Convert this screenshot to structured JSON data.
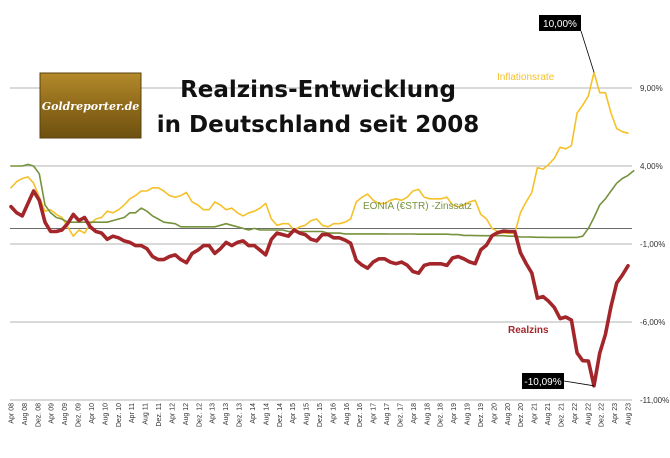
{
  "chart_data": {
    "type": "line",
    "title_lines": [
      "Realzins-Entwicklung",
      "in Deutschland seit 2008"
    ],
    "logo_text": "Goldreporter.de",
    "y_range": [
      -11,
      14
    ],
    "y_ticks": [
      {
        "value": 9,
        "label": "9,00%"
      },
      {
        "value": 4,
        "label": "4,00%"
      },
      {
        "value": -1,
        "label": "-1,00%"
      },
      {
        "value": -6,
        "label": "-6,00%"
      },
      {
        "value": -11,
        "label": "-11,00%"
      }
    ],
    "reference_line": 0,
    "x_labels": [
      "Apr 08",
      "Aug 08",
      "Dez. 08",
      "Apr 09",
      "Aug 09",
      "Dez. 09",
      "Apr 10",
      "Aug 10",
      "Dez. 10",
      "Apr 11",
      "Aug 11",
      "Dez. 11",
      "Apr 12",
      "Aug 12",
      "Dez. 12",
      "Apr 13",
      "Aug 13",
      "Dez. 13",
      "Apr 14",
      "Aug 14",
      "Dez. 14",
      "Apr 15",
      "Aug 15",
      "Dez. 15",
      "Apr 16",
      "Aug 16",
      "Dez. 16",
      "Apr 17",
      "Aug 17",
      "Dez. 17",
      "Apr 18",
      "Aug 18",
      "Dez. 18",
      "Apr 19",
      "Aug 19",
      "Dez. 19",
      "Apr 20",
      "Aug 20",
      "Dez. 20",
      "Apr 21",
      "Aug 21",
      "Dez. 21",
      "Apr 22",
      "Aug 22",
      "Dez. 22",
      "Apr 23",
      "Aug 23"
    ],
    "series": [
      {
        "name": "Inflationsrate",
        "color": "#f5c12a",
        "values": [
          2.6,
          3.0,
          3.2,
          3.3,
          2.9,
          2.0,
          1.1,
          1.2,
          0.9,
          0.7,
          0.1,
          -0.5,
          -0.1,
          -0.3,
          0.3,
          0.6,
          0.7,
          1.1,
          1.0,
          1.2,
          1.5,
          1.9,
          2.1,
          2.4,
          2.4,
          2.6,
          2.6,
          2.4,
          2.1,
          2.0,
          2.1,
          2.3,
          1.7,
          1.5,
          1.2,
          1.2,
          1.7,
          1.5,
          1.2,
          1.3,
          1.0,
          0.8,
          1.0,
          1.1,
          1.3,
          1.6,
          0.6,
          0.2,
          0.3,
          0.3,
          -0.1,
          0.1,
          0.2,
          0.5,
          0.6,
          0.2,
          0.1,
          0.3,
          0.3,
          0.4,
          0.6,
          1.7,
          2.0,
          2.2,
          1.8,
          1.6,
          1.6,
          1.8,
          1.9,
          1.8,
          2.0,
          2.4,
          2.5,
          2.0,
          1.9,
          1.9,
          1.9,
          2.0,
          1.5,
          1.4,
          1.5,
          1.7,
          1.8,
          0.9,
          0.6,
          0.0,
          -0.2,
          -0.3,
          -0.3,
          -0.3,
          1.0,
          1.7,
          2.3,
          3.9,
          3.8,
          4.1,
          4.5,
          5.2,
          5.1,
          5.3,
          7.4,
          7.9,
          8.5,
          10.0,
          8.7,
          8.7,
          7.4,
          6.4,
          6.2,
          6.1
        ]
      },
      {
        "name": "EONIA (€STR) -Zinssatz",
        "color": "#76923c",
        "values": [
          4.0,
          4.0,
          4.0,
          4.1,
          4.0,
          3.5,
          1.5,
          1.0,
          0.7,
          0.6,
          0.4,
          0.4,
          0.4,
          0.4,
          0.4,
          0.4,
          0.4,
          0.4,
          0.5,
          0.6,
          0.7,
          1.0,
          1.0,
          1.3,
          1.1,
          0.8,
          0.6,
          0.4,
          0.35,
          0.3,
          0.1,
          0.1,
          0.1,
          0.1,
          0.1,
          0.1,
          0.1,
          0.2,
          0.3,
          0.2,
          0.1,
          0.0,
          -0.1,
          0.0,
          -0.1,
          -0.1,
          -0.1,
          -0.1,
          -0.1,
          -0.2,
          -0.2,
          -0.2,
          -0.2,
          -0.2,
          -0.2,
          -0.2,
          -0.3,
          -0.3,
          -0.3,
          -0.35,
          -0.35,
          -0.35,
          -0.35,
          -0.35,
          -0.35,
          -0.35,
          -0.35,
          -0.36,
          -0.36,
          -0.36,
          -0.36,
          -0.36,
          -0.37,
          -0.37,
          -0.37,
          -0.37,
          -0.37,
          -0.37,
          -0.4,
          -0.4,
          -0.45,
          -0.45,
          -0.46,
          -0.47,
          -0.47,
          -0.47,
          -0.47,
          -0.47,
          -0.5,
          -0.5,
          -0.55,
          -0.55,
          -0.56,
          -0.57,
          -0.57,
          -0.58,
          -0.58,
          -0.58,
          -0.58,
          -0.58,
          -0.58,
          -0.5,
          0.0,
          0.7,
          1.5,
          1.9,
          2.4,
          2.9,
          3.2,
          3.4,
          3.7
        ]
      },
      {
        "name": "Realzins",
        "color": "#a3262b",
        "values": [
          1.4,
          1.0,
          0.8,
          1.6,
          2.4,
          1.8,
          0.4,
          -0.2,
          -0.2,
          -0.1,
          0.3,
          0.9,
          0.5,
          0.7,
          0.1,
          -0.2,
          -0.3,
          -0.7,
          -0.5,
          -0.6,
          -0.8,
          -0.9,
          -1.1,
          -1.1,
          -1.3,
          -1.8,
          -2.0,
          -2.0,
          -1.8,
          -1.7,
          -2.0,
          -2.2,
          -1.6,
          -1.4,
          -1.1,
          -1.1,
          -1.6,
          -1.3,
          -0.9,
          -1.1,
          -0.9,
          -0.8,
          -1.1,
          -1.1,
          -1.4,
          -1.7,
          -0.7,
          -0.3,
          -0.4,
          -0.5,
          -0.1,
          -0.3,
          -0.4,
          -0.7,
          -0.8,
          -0.4,
          -0.4,
          -0.6,
          -0.6,
          -0.75,
          -0.95,
          -2.05,
          -2.35,
          -2.55,
          -2.15,
          -1.95,
          -1.95,
          -2.16,
          -2.26,
          -2.16,
          -2.36,
          -2.76,
          -2.87,
          -2.37,
          -2.27,
          -2.27,
          -2.27,
          -2.37,
          -1.9,
          -1.8,
          -1.95,
          -2.15,
          -2.26,
          -1.37,
          -1.07,
          -0.47,
          -0.27,
          -0.17,
          -0.2,
          -0.2,
          -1.55,
          -2.25,
          -2.86,
          -4.47,
          -4.37,
          -4.68,
          -5.08,
          -5.78,
          -5.68,
          -5.88,
          -7.98,
          -8.48,
          -8.5,
          -10.09,
          -8.0,
          -6.8,
          -5.0,
          -3.5,
          -3.0,
          -2.4
        ]
      }
    ],
    "annotations": [
      {
        "text": "10,00%",
        "series": "Inflationsrate",
        "index": 103
      },
      {
        "text": "-10,09%",
        "series": "Realzins",
        "index": 103
      }
    ],
    "legend": "inline labels"
  }
}
